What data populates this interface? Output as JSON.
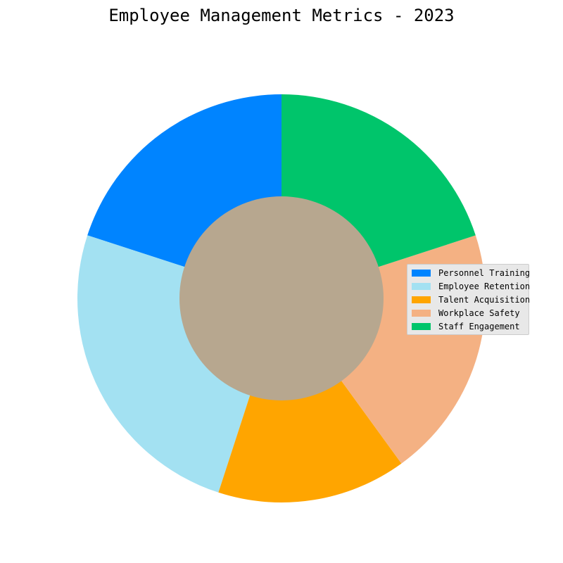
{
  "chart_data": {
    "type": "pie",
    "title": "Employee Management Metrics - 2023",
    "donut": true,
    "categories": [
      "Personnel Training",
      "Employee Retention",
      "Talent Acquisition",
      "Workplace Safety",
      "Staff Engagement"
    ],
    "values": [
      20,
      25,
      15,
      20,
      20
    ],
    "colors": [
      "#0084ff",
      "#a3e1f2",
      "#ffa500",
      "#f4b183",
      "#00c56b"
    ],
    "center_color": "#b7a78f",
    "start_angle": "top",
    "direction": "counterclockwise",
    "legend_position": "right"
  }
}
